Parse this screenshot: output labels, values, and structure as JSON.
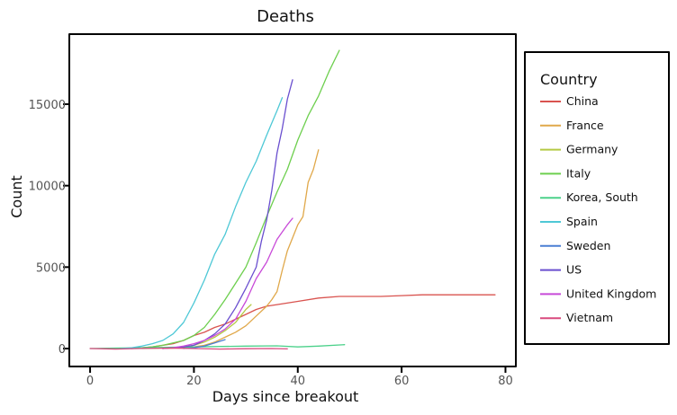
{
  "chart_data": {
    "type": "line",
    "title": "Deaths",
    "xlabel": "Days since breakout",
    "ylabel": "Count",
    "xlim": [
      -4,
      82
    ],
    "ylim": [
      -1100,
      19300
    ],
    "xticks": [
      0,
      20,
      40,
      60,
      80
    ],
    "yticks": [
      0,
      5000,
      10000,
      15000
    ],
    "grid": false,
    "legend": {
      "title": "Country",
      "position": "right"
    },
    "series": [
      {
        "name": "China",
        "color": "#d9534f",
        "x": [
          8,
          12,
          16,
          18,
          20,
          22,
          24,
          26,
          28,
          30,
          32,
          34,
          36,
          40,
          44,
          48,
          52,
          56,
          60,
          64,
          68,
          72,
          76,
          78
        ],
        "y": [
          0,
          100,
          300,
          500,
          800,
          1000,
          1300,
          1500,
          1800,
          2100,
          2400,
          2600,
          2700,
          2900,
          3100,
          3200,
          3200,
          3200,
          3250,
          3300,
          3300,
          3300,
          3300,
          3300
        ]
      },
      {
        "name": "France",
        "color": "#e0a84a",
        "x": [
          14,
          18,
          20,
          22,
          24,
          26,
          28,
          30,
          32,
          34,
          35,
          36,
          37,
          38,
          39,
          40,
          41,
          42,
          43,
          44
        ],
        "y": [
          0,
          50,
          100,
          200,
          400,
          700,
          1000,
          1400,
          2000,
          2600,
          3000,
          3500,
          4800,
          6000,
          6800,
          7600,
          8100,
          10200,
          11000,
          12200
        ]
      },
      {
        "name": "Germany",
        "color": "#b5c944",
        "x": [
          10,
          14,
          18,
          20,
          22,
          24,
          26,
          28,
          29,
          30,
          31
        ],
        "y": [
          0,
          30,
          100,
          200,
          400,
          700,
          1100,
          1600,
          2000,
          2400,
          2700
        ]
      },
      {
        "name": "Italy",
        "color": "#6dcf4e",
        "x": [
          8,
          10,
          12,
          14,
          16,
          18,
          20,
          22,
          24,
          26,
          28,
          30,
          32,
          34,
          36,
          38,
          40,
          42,
          44,
          46,
          48
        ],
        "y": [
          0,
          50,
          100,
          200,
          350,
          500,
          800,
          1300,
          2100,
          3000,
          4000,
          5000,
          6500,
          8100,
          9600,
          11000,
          12800,
          14300,
          15500,
          17000,
          18300
        ]
      },
      {
        "name": "Korea, South",
        "color": "#4bd18a",
        "x": [
          0,
          10,
          20,
          30,
          36,
          40,
          44,
          49
        ],
        "y": [
          0,
          50,
          100,
          150,
          170,
          100,
          150,
          240
        ]
      },
      {
        "name": "Spain",
        "color": "#4ec8d6",
        "x": [
          6,
          8,
          10,
          12,
          14,
          16,
          18,
          20,
          22,
          24,
          26,
          28,
          30,
          32,
          34,
          36,
          37
        ],
        "y": [
          0,
          50,
          150,
          300,
          500,
          900,
          1600,
          2800,
          4200,
          5800,
          7000,
          8700,
          10200,
          11500,
          13100,
          14600,
          15400
        ]
      },
      {
        "name": "Sweden",
        "color": "#4a7fd4",
        "x": [
          18,
          20,
          22,
          24,
          26
        ],
        "y": [
          0,
          50,
          150,
          350,
          550
        ]
      },
      {
        "name": "US",
        "color": "#6a4fcf",
        "x": [
          14,
          16,
          18,
          20,
          22,
          24,
          26,
          28,
          30,
          32,
          33,
          34,
          35,
          36,
          37,
          38,
          39
        ],
        "y": [
          0,
          50,
          100,
          200,
          500,
          900,
          1500,
          2500,
          3700,
          5000,
          6600,
          7900,
          9700,
          12000,
          13500,
          15300,
          16500
        ]
      },
      {
        "name": "United Kingdom",
        "color": "#c84ad8",
        "x": [
          14,
          16,
          18,
          20,
          22,
          24,
          26,
          28,
          30,
          32,
          34,
          36,
          38,
          39
        ],
        "y": [
          0,
          50,
          150,
          300,
          500,
          800,
          1200,
          1800,
          2900,
          4300,
          5300,
          6700,
          7600,
          8000
        ]
      },
      {
        "name": "Vietnam",
        "color": "#d94a7e",
        "x": [
          0,
          5,
          10,
          15,
          20,
          25,
          30,
          35,
          38
        ],
        "y": [
          0,
          -30,
          10,
          30,
          0,
          -30,
          -10,
          0,
          -20
        ]
      }
    ]
  }
}
